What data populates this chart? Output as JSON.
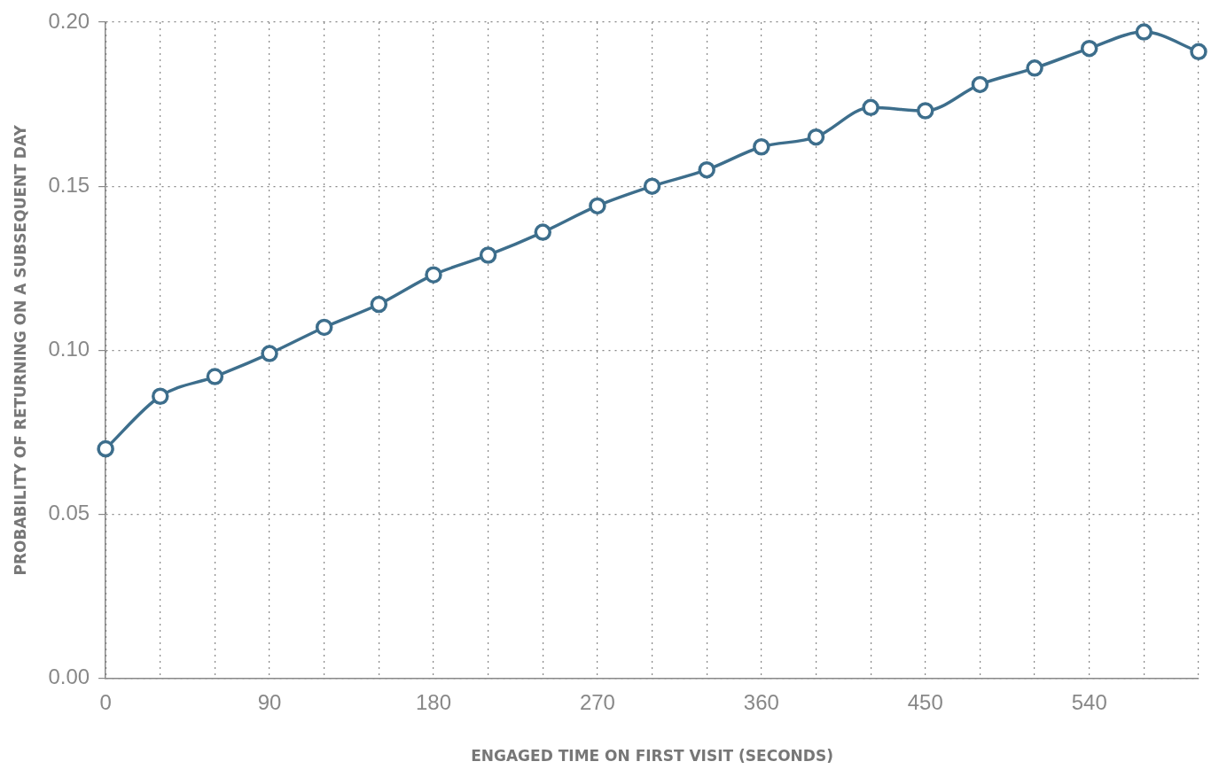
{
  "chart_data": {
    "type": "line",
    "xlabel": "ENGAGED TIME ON FIRST VISIT (SECONDS)",
    "ylabel": "PROBABILITY OF RETURNING ON A SUBSEQUENT DAY",
    "x": [
      0,
      30,
      60,
      90,
      120,
      150,
      180,
      210,
      240,
      270,
      300,
      330,
      360,
      390,
      420,
      450,
      480,
      510,
      540,
      570,
      600
    ],
    "series": [
      {
        "color": "#3d6e8c",
        "values": [
          0.07,
          0.086,
          0.092,
          0.099,
          0.107,
          0.114,
          0.123,
          0.129,
          0.136,
          0.144,
          0.15,
          0.155,
          0.162,
          0.165,
          0.174,
          0.173,
          0.181,
          0.186,
          0.192,
          0.197,
          0.191
        ]
      }
    ],
    "xlim": [
      0,
      600
    ],
    "xticks": [
      0,
      {
        "value": 30,
        "label": null
      },
      {
        "value": 60,
        "label": null
      },
      90,
      {
        "value": 120,
        "label": null
      },
      {
        "value": 150,
        "label": null
      },
      180,
      {
        "value": 210,
        "label": null
      },
      {
        "value": 240,
        "label": null
      },
      270,
      {
        "value": 300,
        "label": null
      },
      {
        "value": 330,
        "label": null
      },
      360,
      {
        "value": 390,
        "label": null
      },
      {
        "value": 420,
        "label": null
      },
      450,
      {
        "value": 480,
        "label": null
      },
      {
        "value": 510,
        "label": null
      },
      540,
      {
        "value": 570,
        "label": null
      },
      {
        "value": 600,
        "label": null
      }
    ],
    "ylim": [
      0,
      0.2
    ],
    "yticks": [
      {
        "value": 0,
        "label": "0.00"
      },
      {
        "value": 0.05,
        "label": "0.05"
      },
      {
        "value": 0.1,
        "label": "0.10"
      },
      {
        "value": 0.15,
        "label": "0.15"
      },
      {
        "value": 0.2,
        "label": "0.20"
      }
    ],
    "grid": true,
    "marker": "circle",
    "line_style": "solid",
    "legend": false
  }
}
